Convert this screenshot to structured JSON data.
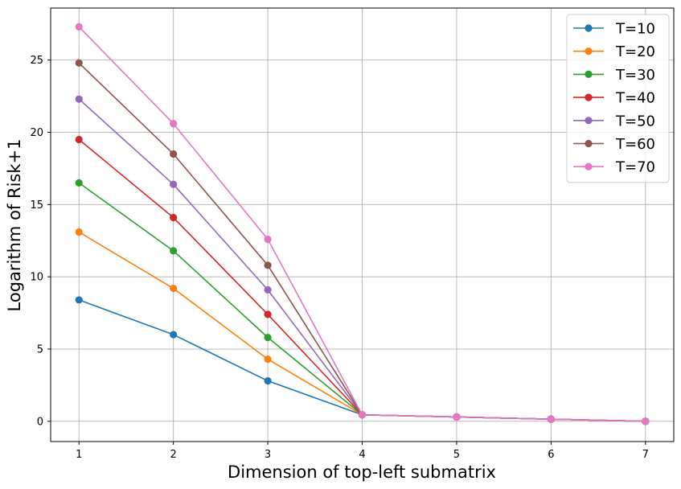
{
  "chart_data": {
    "type": "line",
    "xlabel": "Dimension of top-left submatrix",
    "ylabel": "Logarithm of Risk+1",
    "x": [
      1,
      2,
      3,
      4,
      5,
      6,
      7
    ],
    "xlim": [
      0.7,
      7.3
    ],
    "ylim": [
      -1.4,
      28.6
    ],
    "xticks": [
      "1",
      "2",
      "3",
      "4",
      "5",
      "6",
      "7"
    ],
    "yticks": [
      "0",
      "5",
      "10",
      "15",
      "20",
      "25"
    ],
    "grid": true,
    "legend_position": "top-right",
    "series": [
      {
        "name": "T=10",
        "color": "#1f77b4",
        "values": [
          8.4,
          6.0,
          2.8,
          0.45,
          0.3,
          0.15,
          0.0
        ]
      },
      {
        "name": "T=20",
        "color": "#ff7f0e",
        "values": [
          13.1,
          9.2,
          4.3,
          0.45,
          0.3,
          0.15,
          0.0
        ]
      },
      {
        "name": "T=30",
        "color": "#2ca02c",
        "values": [
          16.5,
          11.8,
          5.8,
          0.45,
          0.3,
          0.15,
          0.0
        ]
      },
      {
        "name": "T=40",
        "color": "#d62728",
        "values": [
          19.5,
          14.1,
          7.4,
          0.45,
          0.3,
          0.15,
          0.0
        ]
      },
      {
        "name": "T=50",
        "color": "#9467bd",
        "values": [
          22.3,
          16.4,
          9.1,
          0.45,
          0.3,
          0.15,
          0.0
        ]
      },
      {
        "name": "T=60",
        "color": "#8c564b",
        "values": [
          24.8,
          18.5,
          10.8,
          0.45,
          0.3,
          0.15,
          0.0
        ]
      },
      {
        "name": "T=70",
        "color": "#e377c2",
        "values": [
          27.3,
          20.6,
          12.6,
          0.45,
          0.3,
          0.15,
          0.0
        ]
      }
    ]
  }
}
